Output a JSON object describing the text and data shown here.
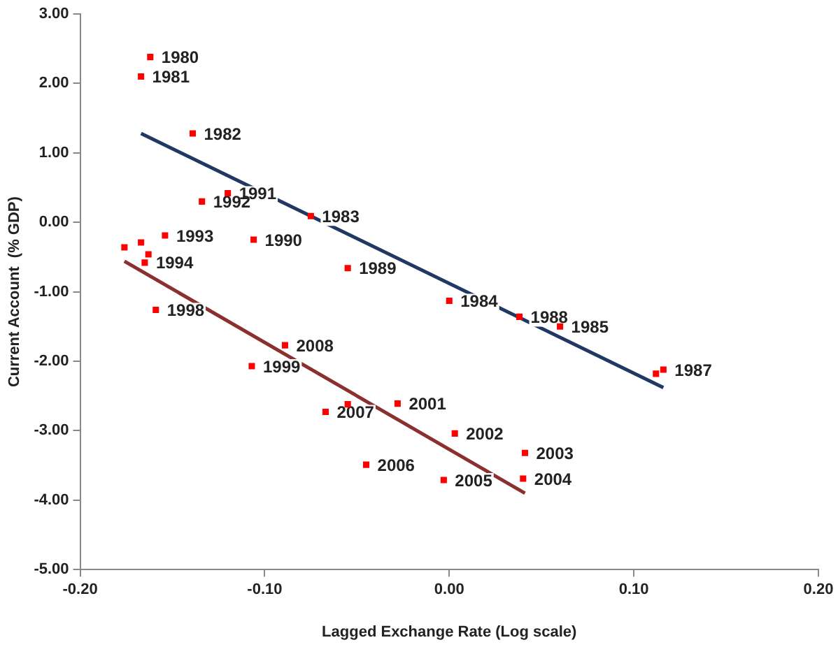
{
  "chart_data": {
    "type": "line",
    "xlabel": "Lagged Exchange Rate (Log scale)",
    "ylabel": "Current Account  (% GDP)",
    "xlim": [
      -0.2,
      0.2
    ],
    "ylim": [
      -5,
      3
    ],
    "xticks": [
      {
        "value": -0.2,
        "label": "-0.20"
      },
      {
        "value": -0.1,
        "label": "-0.10"
      },
      {
        "value": 0,
        "label": "0.00"
      },
      {
        "value": 0.1,
        "label": "0.10"
      },
      {
        "value": 0.2,
        "label": "0.20"
      }
    ],
    "yticks": [
      {
        "value": -5,
        "label": "-5.00"
      },
      {
        "value": -4,
        "label": "-4.00"
      },
      {
        "value": -3,
        "label": "-3.00"
      },
      {
        "value": -2,
        "label": "-2.00"
      },
      {
        "value": -1,
        "label": "-1.00"
      },
      {
        "value": 0,
        "label": "0.00"
      },
      {
        "value": 1,
        "label": "1.00"
      },
      {
        "value": 2,
        "label": "2.00"
      },
      {
        "value": 3,
        "label": "3.00"
      }
    ],
    "grid": false,
    "legend": false,
    "marker": "square",
    "series": [
      {
        "type": "scatter",
        "color": "#ff0000",
        "x": [
          -0.162,
          -0.167,
          -0.139,
          -0.12,
          -0.134,
          -0.075,
          -0.154,
          -0.106,
          -0.055,
          -0.176,
          -0.167,
          -0.163,
          -0.165,
          -0.159,
          -0.089,
          -0.107,
          -0.067,
          -0.055,
          -0.028,
          -0.045,
          -0.003,
          0.003,
          0.041,
          0.04,
          0,
          0.038,
          0.06,
          0.112,
          0.116
        ],
        "values": [
          2.38,
          2.1,
          1.28,
          0.42,
          0.3,
          0.09,
          -0.19,
          -0.25,
          -0.66,
          -0.36,
          -0.29,
          -0.46,
          -0.58,
          -1.26,
          -1.77,
          -2.07,
          -2.73,
          -2.62,
          -2.61,
          -3.49,
          -3.71,
          -3.04,
          -3.32,
          -3.69,
          -1.13,
          -1.36,
          -1.5,
          -2.18,
          -2.12
        ]
      },
      {
        "marker": "none",
        "color": "#1f3864",
        "x": [
          -0.167,
          0.116
        ],
        "values": [
          1.28,
          -2.38
        ]
      },
      {
        "marker": "none",
        "color": "#8b2f2f",
        "x": [
          -0.176,
          0.041
        ],
        "values": [
          -0.56,
          -3.9
        ]
      }
    ],
    "annotations": [
      {
        "text": "1980",
        "x": -0.162,
        "y": 2.38
      },
      {
        "text": "1981",
        "x": -0.167,
        "y": 2.1
      },
      {
        "text": "1982",
        "x": -0.139,
        "y": 1.28
      },
      {
        "text": "1991",
        "x": -0.12,
        "y": 0.42
      },
      {
        "text": "1992",
        "x": -0.134,
        "y": 0.3
      },
      {
        "text": "1983",
        "x": -0.075,
        "y": 0.09
      },
      {
        "text": "1993",
        "x": -0.154,
        "y": -0.19
      },
      {
        "text": "1990",
        "x": -0.106,
        "y": -0.25
      },
      {
        "text": "1989",
        "x": -0.055,
        "y": -0.66
      },
      {
        "text": "1994",
        "x": -0.165,
        "y": -0.58
      },
      {
        "text": "1998",
        "x": -0.159,
        "y": -1.26
      },
      {
        "text": "2008",
        "x": -0.089,
        "y": -1.77
      },
      {
        "text": "1999",
        "x": -0.107,
        "y": -2.07
      },
      {
        "text": "2007",
        "x": -0.067,
        "y": -2.73
      },
      {
        "text": "2001",
        "x": -0.028,
        "y": -2.61
      },
      {
        "text": "2006",
        "x": -0.045,
        "y": -3.49
      },
      {
        "text": "2005",
        "x": -0.003,
        "y": -3.71
      },
      {
        "text": "2002",
        "x": 0.003,
        "y": -3.04
      },
      {
        "text": "2003",
        "x": 0.041,
        "y": -3.32
      },
      {
        "text": "2004",
        "x": 0.04,
        "y": -3.69
      },
      {
        "text": "1984",
        "x": 0,
        "y": -1.13
      },
      {
        "text": "1988",
        "x": 0.038,
        "y": -1.36
      },
      {
        "text": "1985",
        "x": 0.06,
        "y": -1.5
      },
      {
        "text": "1987",
        "x": 0.116,
        "y": -2.12
      }
    ]
  }
}
